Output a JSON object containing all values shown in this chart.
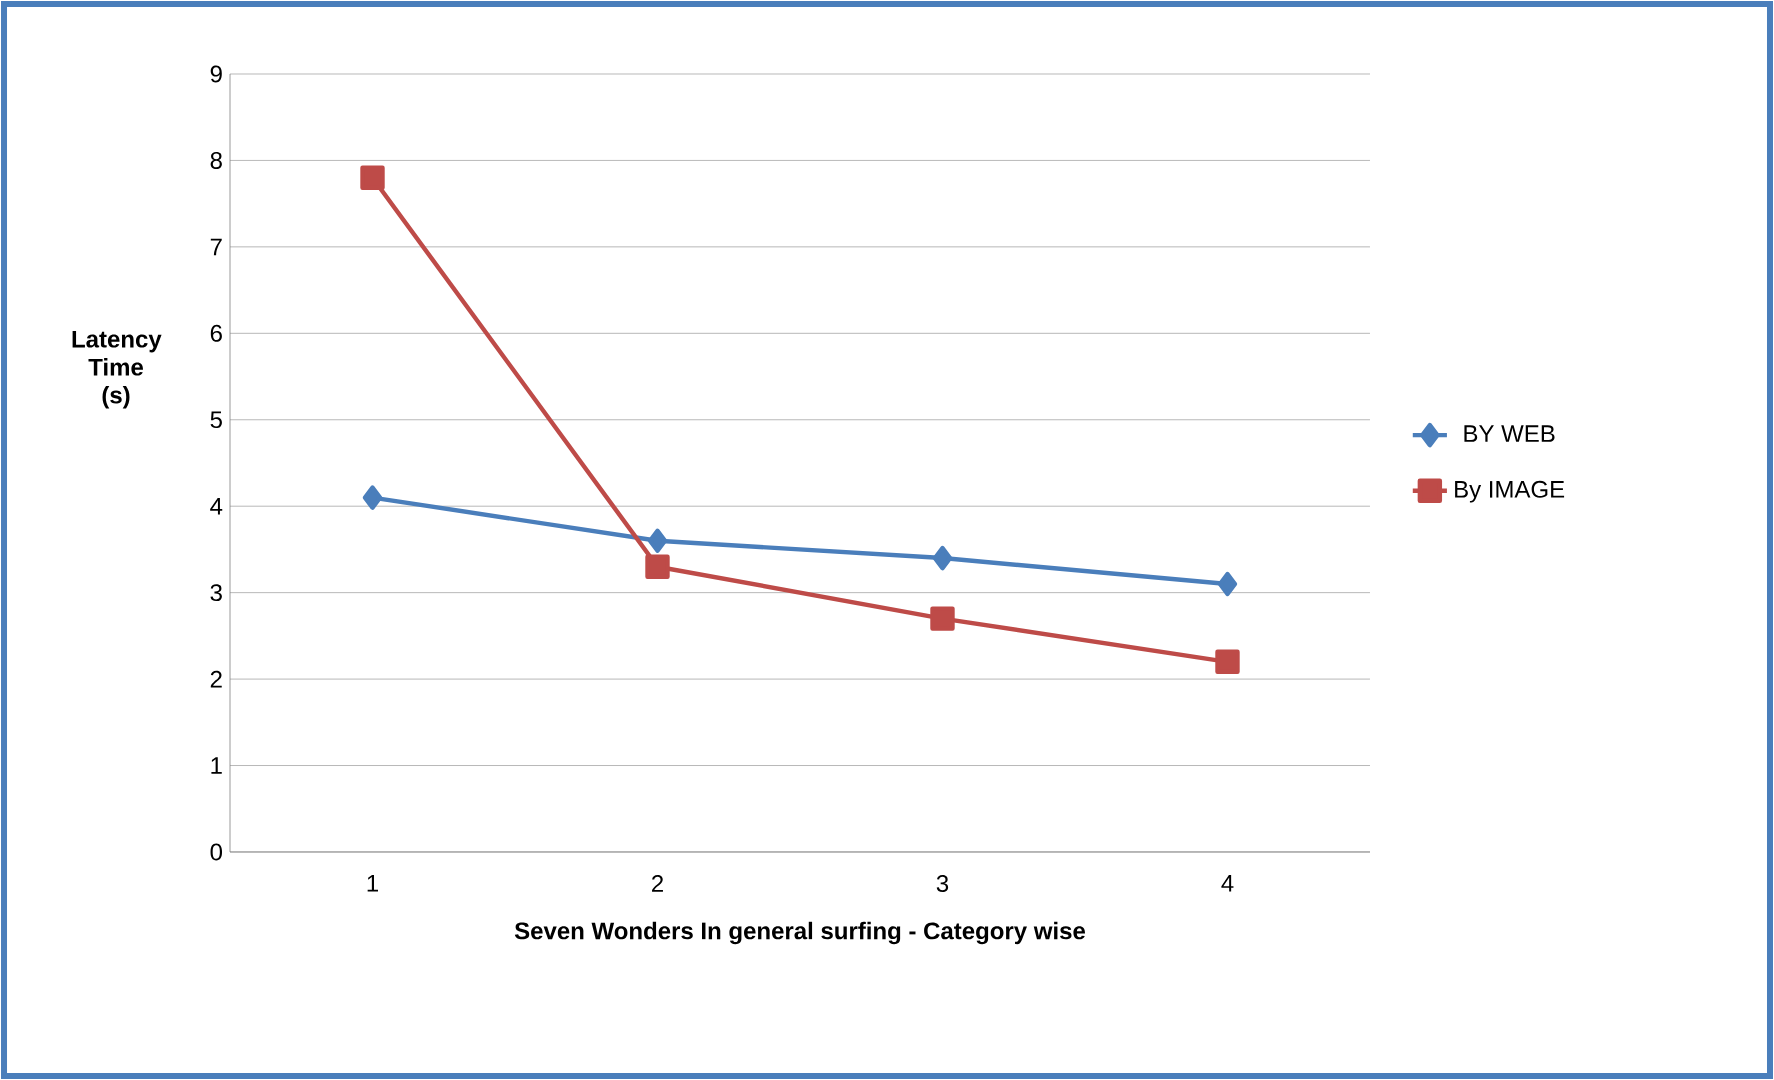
{
  "chart_data": {
    "type": "line",
    "xlabel": "Seven Wonders In general surfing  - Category wise",
    "ylabel": "Latency Time (s)",
    "categories": [
      "1",
      "2",
      "3",
      "4"
    ],
    "series": [
      {
        "name": "BY WEB",
        "color": "#4a7ebb",
        "marker": "diamond",
        "values": [
          4.1,
          3.6,
          3.4,
          3.1
        ]
      },
      {
        "name": "By IMAGE",
        "color": "#be4b48",
        "marker": "square",
        "values": [
          7.8,
          3.3,
          2.7,
          2.2
        ]
      }
    ],
    "ylim": [
      0,
      9
    ],
    "yticks": [
      0,
      1,
      2,
      3,
      4,
      5,
      6,
      7,
      8,
      9
    ],
    "grid": "y",
    "legend": "right",
    "line_style": "solid"
  }
}
